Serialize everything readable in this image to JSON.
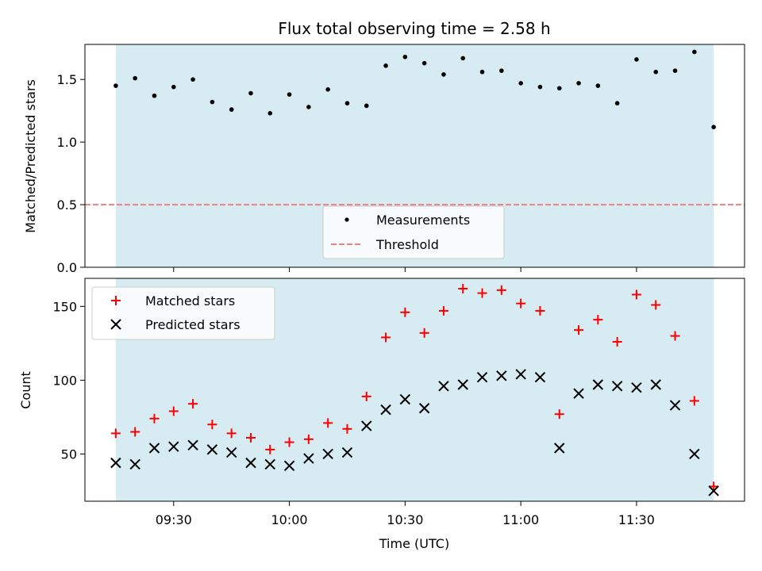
{
  "chart_data": [
    {
      "type": "scatter",
      "title": "Flux total observing time = 2.58 h",
      "xlabel": "",
      "ylabel": "Matched/Predicted stars",
      "ylim": [
        0,
        1.78
      ],
      "y_ticks": [
        "0.0",
        "0.5",
        "1.0",
        "1.5"
      ],
      "y_tick_values": [
        0,
        0.5,
        1.0,
        1.5
      ],
      "shaded_span": [
        "09:15",
        "11:50"
      ],
      "shade_color": "#add8e6",
      "legend_position": "bottom-center",
      "series": [
        {
          "name": "Measurements",
          "marker": "dot",
          "color": "#000000",
          "x": [
            "09:15",
            "09:20",
            "09:25",
            "09:30",
            "09:35",
            "09:40",
            "09:45",
            "09:50",
            "09:55",
            "10:00",
            "10:05",
            "10:10",
            "10:15",
            "10:20",
            "10:25",
            "10:30",
            "10:35",
            "10:40",
            "10:45",
            "10:50",
            "10:55",
            "11:00",
            "11:05",
            "11:10",
            "11:15",
            "11:20",
            "11:25",
            "11:30",
            "11:35",
            "11:40",
            "11:45",
            "11:50"
          ],
          "values": [
            1.45,
            1.51,
            1.37,
            1.44,
            1.5,
            1.32,
            1.26,
            1.39,
            1.23,
            1.38,
            1.28,
            1.42,
            1.31,
            1.29,
            1.61,
            1.68,
            1.63,
            1.54,
            1.67,
            1.56,
            1.57,
            1.47,
            1.44,
            1.43,
            1.47,
            1.45,
            1.31,
            1.66,
            1.56,
            1.57,
            1.72,
            1.12
          ]
        },
        {
          "name": "Threshold",
          "marker": "dashed-line",
          "color": "#f08080",
          "value": 0.5
        }
      ]
    },
    {
      "type": "scatter",
      "title": "",
      "xlabel": "Time (UTC)",
      "ylabel": "Count",
      "ylim": [
        18,
        169
      ],
      "xlim": [
        "09:07",
        "11:58"
      ],
      "x_ticks": [
        "09:30",
        "10:00",
        "10:30",
        "11:00",
        "11:30"
      ],
      "y_ticks": [
        "50",
        "100",
        "150"
      ],
      "y_tick_values": [
        50,
        100,
        150
      ],
      "shaded_span": [
        "09:15",
        "11:50"
      ],
      "shade_color": "#add8e6",
      "legend_position": "top-left",
      "series": [
        {
          "name": "Matched stars",
          "marker": "plus",
          "color": "#ff0000",
          "x": [
            "09:15",
            "09:20",
            "09:25",
            "09:30",
            "09:35",
            "09:40",
            "09:45",
            "09:50",
            "09:55",
            "10:00",
            "10:05",
            "10:10",
            "10:15",
            "10:20",
            "10:25",
            "10:30",
            "10:35",
            "10:40",
            "10:45",
            "10:50",
            "10:55",
            "11:00",
            "11:05",
            "11:10",
            "11:15",
            "11:20",
            "11:25",
            "11:30",
            "11:35",
            "11:40",
            "11:45",
            "11:50"
          ],
          "values": [
            64,
            65,
            74,
            79,
            84,
            70,
            64,
            61,
            53,
            58,
            60,
            71,
            67,
            89,
            129,
            146,
            132,
            147,
            162,
            159,
            161,
            152,
            147,
            77,
            134,
            141,
            126,
            158,
            151,
            130,
            86,
            28
          ]
        },
        {
          "name": "Predicted stars",
          "marker": "x",
          "color": "#000000",
          "x": [
            "09:15",
            "09:20",
            "09:25",
            "09:30",
            "09:35",
            "09:40",
            "09:45",
            "09:50",
            "09:55",
            "10:00",
            "10:05",
            "10:10",
            "10:15",
            "10:20",
            "10:25",
            "10:30",
            "10:35",
            "10:40",
            "10:45",
            "10:50",
            "10:55",
            "11:00",
            "11:05",
            "11:10",
            "11:15",
            "11:20",
            "11:25",
            "11:30",
            "11:35",
            "11:40",
            "11:45",
            "11:50"
          ],
          "values": [
            44,
            43,
            54,
            55,
            56,
            53,
            51,
            44,
            43,
            42,
            47,
            50,
            51,
            69,
            80,
            87,
            81,
            96,
            97,
            102,
            103,
            104,
            102,
            54,
            91,
            97,
            96,
            95,
            97,
            83,
            50,
            25
          ]
        }
      ]
    }
  ]
}
